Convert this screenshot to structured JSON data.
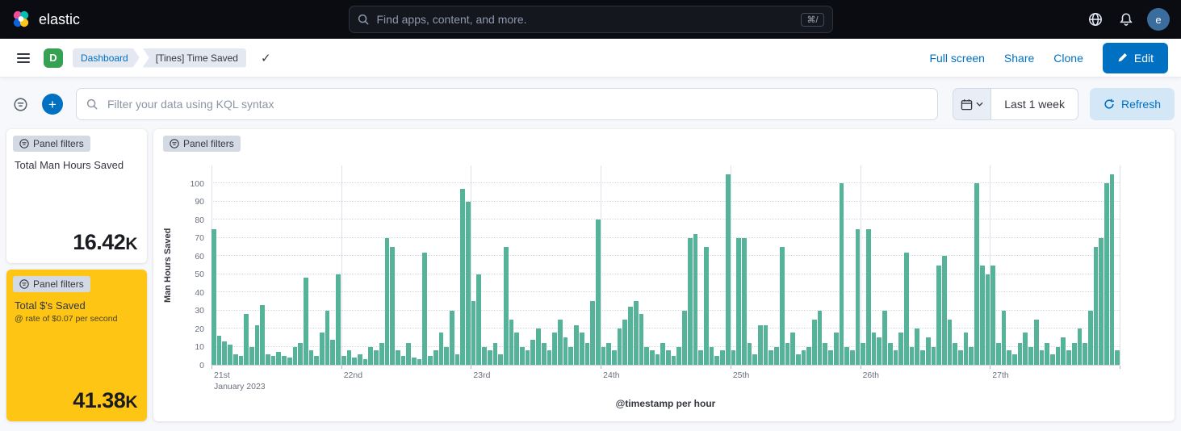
{
  "colors": {
    "accent": "#0071c2",
    "bar": "#54b399",
    "warning": "#fec514",
    "space-badge": "#36a152"
  },
  "header": {
    "brand": "elastic",
    "search_placeholder": "Find apps, content, and more.",
    "search_shortcut": "⌘/",
    "avatar_initial": "e"
  },
  "navbar": {
    "space_initial": "D",
    "breadcrumbs": [
      "Dashboard",
      "[Tines] Time Saved"
    ],
    "actions": [
      "Full screen",
      "Share",
      "Clone"
    ],
    "edit_label": "Edit"
  },
  "filter_bar": {
    "kql_placeholder": "Filter your data using KQL syntax",
    "time_range": "Last 1 week",
    "refresh_label": "Refresh"
  },
  "panels": {
    "filters_badge": "Panel filters",
    "man_hours": {
      "title": "Total Man Hours Saved",
      "value": "16.42",
      "unit": "K"
    },
    "dollars": {
      "title": "Total $'s Saved",
      "subtitle": "@ rate of $0.07 per second",
      "value": "41.38",
      "unit": "K"
    }
  },
  "chart_data": {
    "type": "bar",
    "title": "",
    "ylabel": "Man Hours Saved",
    "xlabel": "@timestamp per hour",
    "y_ticks": [
      0,
      10,
      20,
      30,
      40,
      50,
      60,
      70,
      80,
      90,
      100
    ],
    "ylim": [
      0,
      110
    ],
    "grid": true,
    "legend": false,
    "x_day_labels": [
      "21st",
      "22nd",
      "23rd",
      "24th",
      "25th",
      "26th",
      "27th"
    ],
    "x_sub_label": "January 2023",
    "bar_color": "#54b399",
    "values": [
      75,
      16,
      13,
      11,
      6,
      5,
      28,
      10,
      22,
      33,
      6,
      5,
      7,
      5,
      4,
      10,
      12,
      48,
      8,
      5,
      18,
      30,
      14,
      50,
      5,
      8,
      4,
      6,
      3,
      10,
      8,
      12,
      70,
      65,
      8,
      5,
      12,
      4,
      3,
      62,
      5,
      8,
      18,
      10,
      30,
      6,
      97,
      90,
      35,
      50,
      10,
      8,
      12,
      6,
      65,
      25,
      18,
      10,
      8,
      14,
      20,
      12,
      8,
      18,
      25,
      15,
      10,
      22,
      18,
      12,
      35,
      80,
      10,
      12,
      8,
      20,
      25,
      32,
      35,
      28,
      10,
      8,
      6,
      12,
      8,
      5,
      10,
      30,
      70,
      72,
      8,
      65,
      10,
      5,
      8,
      105,
      8,
      70,
      70,
      12,
      6,
      22,
      22,
      8,
      10,
      65,
      12,
      18,
      6,
      8,
      10,
      25,
      30,
      12,
      8,
      18,
      100,
      10,
      8,
      75,
      12,
      75,
      18,
      15,
      30,
      12,
      8,
      18,
      62,
      10,
      20,
      8,
      15,
      10,
      55,
      60,
      25,
      12,
      8,
      18,
      10,
      100,
      55,
      50,
      55,
      12,
      30,
      8,
      6,
      12,
      18,
      10,
      25,
      8,
      12,
      6,
      10,
      15,
      8,
      12,
      20,
      12,
      30,
      65,
      70,
      100,
      105,
      8
    ]
  }
}
